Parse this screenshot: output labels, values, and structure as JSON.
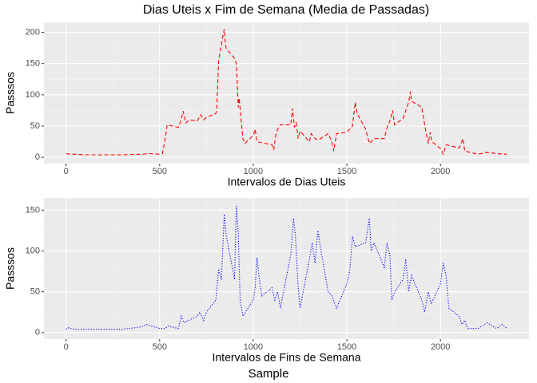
{
  "title": "Dias Uteis x Fim de Semana (Media de Passadas)",
  "caption": "Sample",
  "chart_data": [
    {
      "type": "line",
      "xlabel": "Intervalos de Dias Uteis",
      "ylabel": "Passsos",
      "color": "#ff0000",
      "linestyle": "dashed",
      "grid": true,
      "xlim": [
        -118,
        2473
      ],
      "ylim": [
        -10,
        216
      ],
      "xticks": [
        0,
        500,
        1000,
        1500,
        2000
      ],
      "yticks": [
        0,
        50,
        100,
        150,
        200
      ],
      "x": [
        0,
        25,
        50,
        100,
        200,
        300,
        400,
        450,
        500,
        515,
        530,
        540,
        600,
        615,
        625,
        640,
        660,
        700,
        720,
        735,
        750,
        800,
        805,
        815,
        830,
        835,
        845,
        850,
        855,
        900,
        910,
        920,
        925,
        935,
        945,
        955,
        1000,
        1010,
        1020,
        1100,
        1110,
        1120,
        1130,
        1145,
        1200,
        1210,
        1220,
        1230,
        1240,
        1250,
        1300,
        1310,
        1330,
        1350,
        1400,
        1420,
        1430,
        1445,
        1500,
        1530,
        1545,
        1555,
        1600,
        1620,
        1645,
        1700,
        1715,
        1730,
        1745,
        1755,
        1800,
        1815,
        1830,
        1840,
        1845,
        1900,
        1920,
        1935,
        1945,
        1955,
        2000,
        2015,
        2030,
        2100,
        2120,
        2130,
        2200,
        2250,
        2300,
        2355
      ],
      "values": [
        6,
        5,
        5,
        4,
        4,
        4,
        5,
        6,
        5,
        6,
        30,
        52,
        48,
        60,
        74,
        55,
        60,
        58,
        68,
        60,
        64,
        70,
        76,
        155,
        180,
        190,
        205,
        185,
        175,
        158,
        150,
        80,
        95,
        60,
        30,
        22,
        35,
        45,
        25,
        20,
        12,
        35,
        45,
        52,
        52,
        78,
        48,
        55,
        30,
        42,
        25,
        38,
        30,
        28,
        38,
        25,
        10,
        38,
        40,
        50,
        88,
        70,
        45,
        22,
        30,
        30,
        48,
        58,
        75,
        52,
        62,
        75,
        88,
        105,
        90,
        80,
        45,
        22,
        40,
        25,
        14,
        5,
        20,
        15,
        30,
        10,
        5,
        8,
        6,
        5
      ]
    },
    {
      "type": "line",
      "xlabel": "Intervalos de Fins de Semana",
      "ylabel": "Passsos",
      "color": "#0000ff",
      "linestyle": "dotted",
      "grid": true,
      "xlim": [
        -118,
        2473
      ],
      "ylim": [
        -8,
        165
      ],
      "xticks": [
        0,
        500,
        1000,
        1500,
        2000
      ],
      "yticks": [
        0,
        50,
        100,
        150
      ],
      "x": [
        0,
        10,
        50,
        100,
        300,
        400,
        430,
        500,
        530,
        545,
        600,
        615,
        630,
        700,
        715,
        735,
        750,
        800,
        815,
        830,
        845,
        855,
        900,
        910,
        920,
        930,
        945,
        1000,
        1010,
        1020,
        1030,
        1045,
        1100,
        1115,
        1130,
        1145,
        1200,
        1215,
        1225,
        1240,
        1250,
        1300,
        1315,
        1330,
        1345,
        1355,
        1400,
        1420,
        1445,
        1500,
        1515,
        1530,
        1545,
        1600,
        1620,
        1630,
        1645,
        1700,
        1715,
        1730,
        1740,
        1755,
        1800,
        1815,
        1830,
        1845,
        1900,
        1915,
        1935,
        1950,
        2000,
        2015,
        2030,
        2045,
        2100,
        2115,
        2130,
        2145,
        2200,
        2250,
        2300,
        2330,
        2355
      ],
      "values": [
        4,
        6,
        4,
        4,
        4,
        7,
        10,
        5,
        5,
        8,
        5,
        20,
        12,
        20,
        25,
        15,
        25,
        40,
        78,
        65,
        145,
        120,
        65,
        155,
        120,
        40,
        20,
        40,
        55,
        92,
        70,
        45,
        55,
        40,
        50,
        30,
        95,
        140,
        120,
        55,
        30,
        90,
        110,
        85,
        125,
        110,
        50,
        45,
        30,
        60,
        75,
        118,
        105,
        110,
        140,
        100,
        110,
        80,
        110,
        95,
        40,
        50,
        65,
        90,
        50,
        70,
        40,
        25,
        50,
        35,
        60,
        85,
        70,
        30,
        20,
        10,
        15,
        5,
        5,
        12,
        5,
        10,
        5
      ]
    }
  ]
}
